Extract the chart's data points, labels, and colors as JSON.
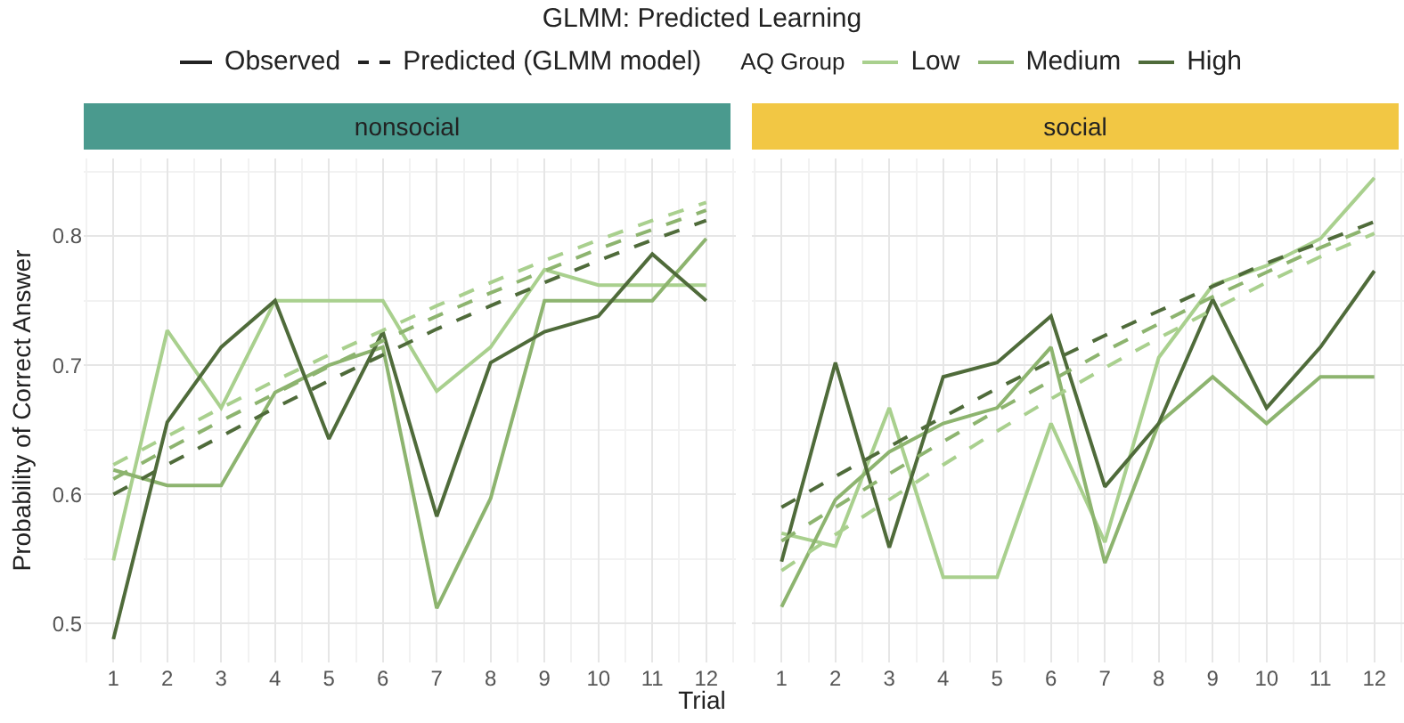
{
  "chart_data": [
    {
      "type": "line",
      "title": "nonsocial",
      "xlabel": "Trial",
      "ylabel": "Probability of Correct Answer",
      "legend_title": "AQ Group",
      "legend": "top",
      "grid": true,
      "annotations": [
        "GLMM: Predicted Learning",
        "Observed",
        "Predicted (GLMM model)"
      ],
      "x": [
        1,
        2,
        3,
        4,
        5,
        6,
        7,
        8,
        9,
        10,
        11,
        12
      ],
      "xlim": [
        0.45,
        12.55
      ],
      "xticks": [
        1,
        2,
        3,
        4,
        5,
        6,
        7,
        8,
        9,
        10,
        11,
        12
      ],
      "ylim": [
        0.47,
        0.86
      ],
      "yticks": [
        0.5,
        0.6,
        0.7,
        0.8
      ],
      "series": [
        {
          "name": "Low",
          "color": "#a9d08e",
          "line_style": "solid",
          "values": [
            0.549,
            0.727,
            0.667,
            0.75,
            0.75,
            0.75,
            0.68,
            0.714,
            0.774,
            0.762,
            0.762,
            0.762
          ]
        },
        {
          "name": "Medium",
          "color": "#8db46f",
          "line_style": "solid",
          "values": [
            0.619,
            0.607,
            0.607,
            0.679,
            0.7,
            0.714,
            0.512,
            0.597,
            0.75,
            0.75,
            0.75,
            0.798
          ]
        },
        {
          "name": "High",
          "color": "#4f6b3a",
          "line_style": "solid",
          "values": [
            0.488,
            0.656,
            0.714,
            0.75,
            0.643,
            0.726,
            0.583,
            0.702,
            0.726,
            0.738,
            0.786,
            0.75
          ]
        },
        {
          "color": "#a9d08e",
          "line_style": "dashed",
          "values": [
            0.623,
            0.645,
            0.667,
            0.688,
            0.708,
            0.727,
            0.746,
            0.764,
            0.781,
            0.797,
            0.812,
            0.826
          ]
        },
        {
          "color": "#8db46f",
          "line_style": "dashed",
          "values": [
            0.612,
            0.635,
            0.657,
            0.678,
            0.699,
            0.719,
            0.738,
            0.756,
            0.773,
            0.79,
            0.805,
            0.82
          ]
        },
        {
          "color": "#4f6b3a",
          "line_style": "dashed",
          "values": [
            0.6,
            0.623,
            0.645,
            0.667,
            0.688,
            0.708,
            0.728,
            0.746,
            0.764,
            0.781,
            0.797,
            0.812
          ]
        }
      ]
    },
    {
      "type": "line",
      "title": "social",
      "tick_labels": "x",
      "grid": true,
      "x": [
        1,
        2,
        3,
        4,
        5,
        6,
        7,
        8,
        9,
        10,
        11,
        12
      ],
      "xlim": [
        0.45,
        12.55
      ],
      "xticks": [
        1,
        2,
        3,
        4,
        5,
        6,
        7,
        8,
        9,
        10,
        11,
        12
      ],
      "ylim": [
        0.47,
        0.86
      ],
      "yticks": [
        0.5,
        0.6,
        0.7,
        0.8
      ],
      "series": [
        {
          "color": "#a9d08e",
          "line_style": "solid",
          "values": [
            0.57,
            0.56,
            0.667,
            0.536,
            0.536,
            0.655,
            0.563,
            0.706,
            0.762,
            0.777,
            0.798,
            0.845
          ]
        },
        {
          "color": "#8db46f",
          "line_style": "solid",
          "values": [
            0.513,
            0.596,
            0.633,
            0.655,
            0.667,
            0.714,
            0.547,
            0.655,
            0.691,
            0.655,
            0.691,
            0.691
          ]
        },
        {
          "color": "#4f6b3a",
          "line_style": "solid",
          "values": [
            0.548,
            0.702,
            0.559,
            0.691,
            0.702,
            0.738,
            0.606,
            0.655,
            0.751,
            0.667,
            0.714,
            0.773
          ]
        },
        {
          "color": "#a9d08e",
          "line_style": "dashed",
          "values": [
            0.541,
            0.569,
            0.596,
            0.623,
            0.649,
            0.674,
            0.698,
            0.721,
            0.743,
            0.764,
            0.784,
            0.802
          ]
        },
        {
          "color": "#8db46f",
          "line_style": "dashed",
          "values": [
            0.564,
            0.59,
            0.616,
            0.641,
            0.665,
            0.688,
            0.711,
            0.732,
            0.753,
            0.772,
            0.791,
            0.808
          ]
        },
        {
          "color": "#4f6b3a",
          "line_style": "dashed",
          "values": [
            0.59,
            0.614,
            0.637,
            0.66,
            0.682,
            0.703,
            0.723,
            0.742,
            0.761,
            0.779,
            0.795,
            0.811
          ]
        }
      ]
    }
  ]
}
